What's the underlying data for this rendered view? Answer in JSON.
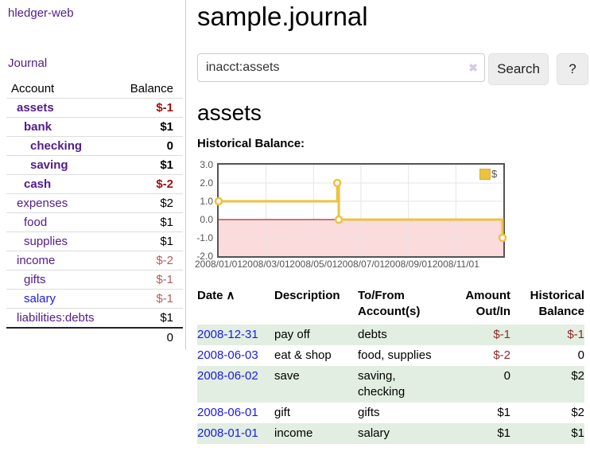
{
  "app": {
    "title": "hledger-web"
  },
  "colors": {
    "link_purple": "#511b8c",
    "link_blue": "#1a1ae6",
    "negative_strong": "#9e0e0e",
    "negative_muted": "#b06060",
    "register_negative": "#942626",
    "row_green": "#e1eee1",
    "chart_line_gold": "#edc240",
    "chart_zero_line": "#8b0000",
    "chart_negative_fill": "#fbdbdb"
  },
  "sidebar": {
    "nav": {
      "journal": "Journal"
    },
    "headers": {
      "account": "Account",
      "balance": "Balance"
    },
    "accounts": [
      {
        "name": "assets",
        "balance": "$-1"
      },
      {
        "name": "bank",
        "balance": "$1"
      },
      {
        "name": "checking",
        "balance": "0"
      },
      {
        "name": "saving",
        "balance": "$1"
      },
      {
        "name": "cash",
        "balance": "$-2"
      },
      {
        "name": "expenses",
        "balance": "$2"
      },
      {
        "name": "food",
        "balance": "$1"
      },
      {
        "name": "supplies",
        "balance": "$1"
      },
      {
        "name": "income",
        "balance": "$-2"
      },
      {
        "name": "gifts",
        "balance": "$-1"
      },
      {
        "name": "salary",
        "balance": "$-1"
      },
      {
        "name": "liabilities:debts",
        "balance": "$1"
      }
    ],
    "total": "0"
  },
  "main": {
    "title": "sample.journal",
    "search": {
      "value": "inacct:assets",
      "clear_icon": "✖",
      "button": "Search",
      "help_button": "?"
    },
    "account_heading": "assets",
    "chart_heading": "Historical Balance:"
  },
  "chart_data": {
    "type": "line",
    "title": "Historical Balance:",
    "step": true,
    "series": [
      {
        "name": "$",
        "color": "#edc240",
        "points": [
          {
            "x": "2008-01-01",
            "y": 1
          },
          {
            "x": "2008-06-01",
            "y": 2
          },
          {
            "x": "2008-06-03",
            "y": 0
          },
          {
            "x": "2008-12-31",
            "y": -1
          }
        ]
      }
    ],
    "x_ticks": [
      "2008/01/01",
      "2008/03/01",
      "2008/05/01",
      "2008/07/01",
      "2008/09/01",
      "2008/11/01"
    ],
    "y_ticks": [
      "3.0",
      "2.0",
      "1.0",
      "0.0",
      "-1.0",
      "-2.0"
    ],
    "ylim": [
      -2,
      3
    ],
    "xlim_months": [
      0,
      12
    ],
    "legend_position": "top-right",
    "grid": true
  },
  "register": {
    "headers": [
      "Date",
      "Description",
      "To/From Account(s)",
      "Amount Out/In",
      "Historical Balance"
    ],
    "sort_icon": "∧",
    "rows": [
      {
        "date": "2008-12-31",
        "description": "pay off",
        "accounts": "debts",
        "amount": "$-1",
        "balance": "$-1"
      },
      {
        "date": "2008-06-03",
        "description": "eat & shop",
        "accounts": "food, supplies",
        "amount": "$-2",
        "balance": "0"
      },
      {
        "date": "2008-06-02",
        "description": "save",
        "accounts": "saving, checking",
        "amount": "0",
        "balance": "$2"
      },
      {
        "date": "2008-06-01",
        "description": "gift",
        "accounts": "gifts",
        "amount": "$1",
        "balance": "$2"
      },
      {
        "date": "2008-01-01",
        "description": "income",
        "accounts": "salary",
        "amount": "$1",
        "balance": "$1"
      }
    ]
  }
}
